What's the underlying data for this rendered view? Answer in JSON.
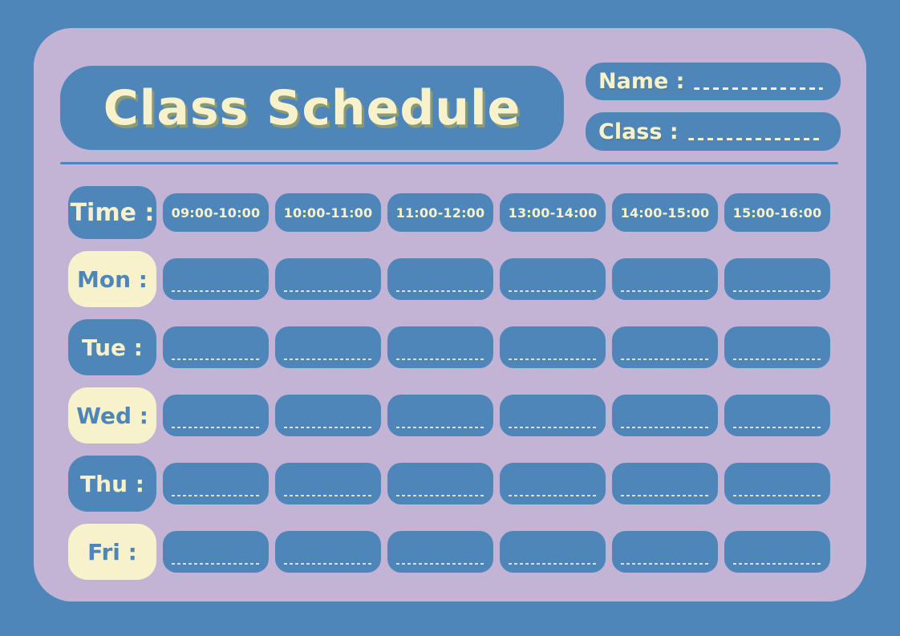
{
  "colors": {
    "background_blue": "#4E86BA",
    "card_lavender": "#C3B4D6",
    "cream": "#F7F2CB",
    "title_shadow_olive": "#8B9A70"
  },
  "header": {
    "title": "Class Schedule",
    "name_field": {
      "label": "Name :",
      "value": ""
    },
    "class_field": {
      "label": "Class :",
      "value": ""
    }
  },
  "schedule": {
    "time_header": {
      "label": "Time :"
    },
    "time_slots": [
      "09:00-10:00",
      "10:00-11:00",
      "11:00-12:00",
      "13:00-14:00",
      "14:00-15:00",
      "15:00-16:00"
    ],
    "days": [
      {
        "label": "Mon :",
        "style": "cream"
      },
      {
        "label": "Tue :",
        "style": "blue"
      },
      {
        "label": "Wed :",
        "style": "cream"
      },
      {
        "label": "Thu :",
        "style": "blue"
      },
      {
        "label": "Fri :",
        "style": "cream"
      }
    ],
    "cells_per_day": 6,
    "cell_value": ""
  }
}
